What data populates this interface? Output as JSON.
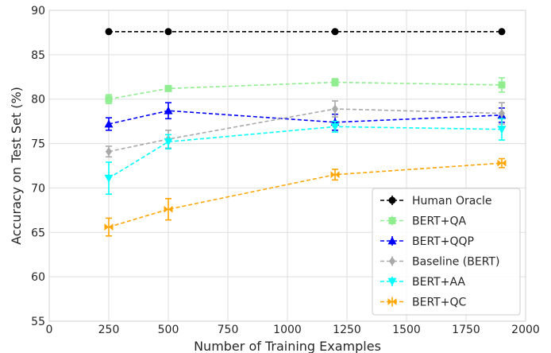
{
  "chart_data": {
    "type": "line",
    "title": "",
    "xlabel": "Number of Training Examples",
    "ylabel": "Accuracy on Test Set (%)",
    "xlim": [
      0,
      2000
    ],
    "ylim": [
      55,
      90
    ],
    "xticks": [
      0,
      250,
      500,
      750,
      1000,
      1250,
      1500,
      1750,
      2000
    ],
    "yticks": [
      55,
      60,
      65,
      70,
      75,
      80,
      85,
      90
    ],
    "grid": true,
    "legend_position": "bottom-right",
    "x": [
      250,
      500,
      1200,
      1900
    ],
    "series": [
      {
        "name": "Human Oracle",
        "values": [
          87.6,
          87.6,
          87.6,
          87.6
        ],
        "errors": [
          0,
          0,
          0,
          0
        ],
        "color": "#000000",
        "marker": "circle"
      },
      {
        "name": "BERT+QA",
        "values": [
          80.0,
          81.2,
          81.9,
          81.6
        ],
        "errors": [
          0.5,
          0.3,
          0.4,
          0.8
        ],
        "color": "#90ee90",
        "marker": "square"
      },
      {
        "name": "BERT+QQP",
        "values": [
          77.2,
          78.7,
          77.4,
          78.2
        ],
        "errors": [
          0.7,
          0.9,
          0.9,
          0.8
        ],
        "color": "#0000ff",
        "marker": "triangle"
      },
      {
        "name": "Baseline (BERT)",
        "values": [
          74.1,
          75.5,
          78.9,
          78.4
        ],
        "errors": [
          0.6,
          1.0,
          0.9,
          1.2
        ],
        "color": "#a9a9a9",
        "marker": "diamond"
      },
      {
        "name": "BERT+AA",
        "values": [
          71.1,
          75.2,
          76.9,
          76.6
        ],
        "errors": [
          1.8,
          0.8,
          0.6,
          1.2
        ],
        "color": "#00ffff",
        "marker": "triangle-down"
      },
      {
        "name": "BERT+QC",
        "values": [
          65.6,
          67.6,
          71.5,
          72.8
        ],
        "errors": [
          1.0,
          1.2,
          0.6,
          0.5
        ],
        "color": "#ffa500",
        "marker": "bowtie"
      }
    ]
  }
}
